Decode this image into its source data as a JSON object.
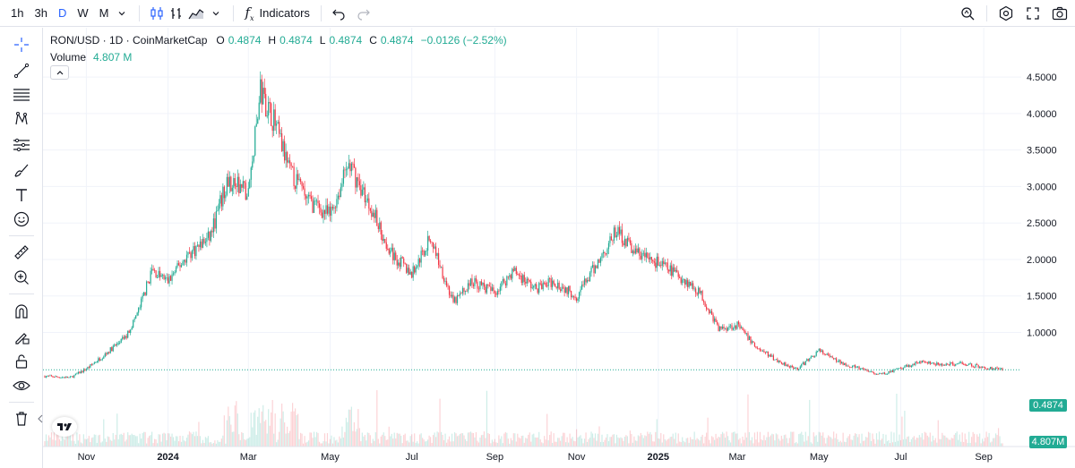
{
  "toolbar": {
    "timeframes": [
      {
        "label": "1h",
        "active": false
      },
      {
        "label": "3h",
        "active": false
      },
      {
        "label": "D",
        "active": true
      },
      {
        "label": "W",
        "active": false
      },
      {
        "label": "M",
        "active": false
      }
    ],
    "indicators_label": "Indicators"
  },
  "legend": {
    "symbol": "RON/USD · 1D · CoinMarketCap",
    "o_label": "O",
    "o_value": "0.4874",
    "h_label": "H",
    "h_value": "0.4874",
    "l_label": "L",
    "l_value": "0.4874",
    "c_label": "C",
    "c_value": "0.4874",
    "change": "−0.0126 (−2.52%)",
    "volume_label": "Volume",
    "volume_value": "4.807 M"
  },
  "price_axis": {
    "current_price": "0.4874",
    "current_volume": "4.807M"
  },
  "colors": {
    "up": "#22ab94",
    "down": "#f23645",
    "accent": "#2962ff"
  },
  "chart_data": {
    "type": "line",
    "title": "RON/USD · 1D · CoinMarketCap",
    "ylim": [
      0,
      4.6
    ],
    "y_ticks": [
      "4.5000",
      "4.0000",
      "3.5000",
      "3.0000",
      "2.5000",
      "2.0000",
      "1.5000",
      "1.0000"
    ],
    "x_ticks": [
      "Nov",
      "2024",
      "Mar",
      "May",
      "Jul",
      "Sep",
      "Nov",
      "2025",
      "Mar",
      "May",
      "Jul",
      "Sep"
    ],
    "series": [
      {
        "x": [
          "2023-10-01",
          "2023-10-20",
          "2023-11-01",
          "2023-11-15",
          "2023-12-01",
          "2023-12-10",
          "2023-12-20",
          "2024-01-01",
          "2024-01-15",
          "2024-02-01",
          "2024-02-15",
          "2024-03-01",
          "2024-03-10",
          "2024-03-20",
          "2024-04-01",
          "2024-04-15",
          "2024-05-01",
          "2024-05-15",
          "2024-06-01",
          "2024-06-15",
          "2024-07-01",
          "2024-07-15",
          "2024-08-01",
          "2024-08-15",
          "2024-09-01",
          "2024-09-15",
          "2024-10-01",
          "2024-10-15",
          "2024-11-01",
          "2024-11-15",
          "2024-12-01",
          "2024-12-15",
          "2025-01-01",
          "2025-01-15",
          "2025-02-01",
          "2025-02-15",
          "2025-03-01",
          "2025-03-15",
          "2025-04-01",
          "2025-04-15",
          "2025-05-01",
          "2025-05-15",
          "2025-06-01",
          "2025-06-15",
          "2025-07-01",
          "2025-07-15",
          "2025-08-01",
          "2025-08-15",
          "2025-09-01",
          "2025-09-15"
        ],
        "values": [
          0.4,
          0.38,
          0.5,
          0.7,
          0.95,
          1.3,
          1.85,
          1.7,
          2.05,
          2.3,
          3.1,
          2.9,
          4.3,
          3.9,
          3.2,
          2.8,
          2.6,
          3.3,
          2.7,
          2.1,
          1.8,
          2.3,
          1.4,
          1.7,
          1.55,
          1.85,
          1.6,
          1.7,
          1.5,
          1.9,
          2.4,
          2.1,
          1.95,
          1.8,
          1.55,
          1.05,
          1.1,
          0.8,
          0.6,
          0.5,
          0.75,
          0.6,
          0.5,
          0.42,
          0.5,
          0.6,
          0.55,
          0.58,
          0.52,
          0.49
        ]
      }
    ]
  }
}
